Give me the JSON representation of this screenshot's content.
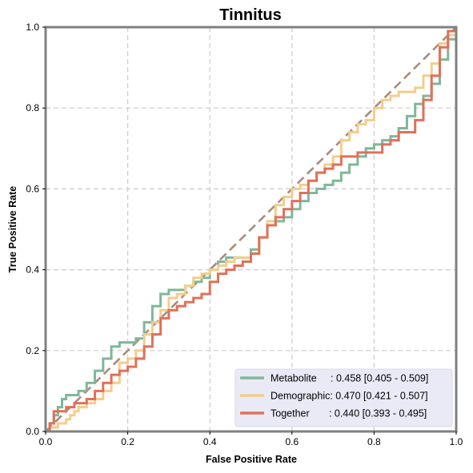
{
  "chart_data": {
    "type": "line",
    "title": "Tinnitus",
    "xlabel": "False Positive Rate",
    "ylabel": "True Positive Rate",
    "xlim": [
      0,
      1
    ],
    "ylim": [
      0,
      1
    ],
    "x_ticks": [
      "0.0",
      "0.2",
      "0.4",
      "0.6",
      "0.8",
      "1.0"
    ],
    "y_ticks": [
      "0.0",
      "0.2",
      "0.4",
      "0.6",
      "0.8",
      "1.0"
    ],
    "grid": true,
    "legend_position": "bottom-right",
    "diagonal": {
      "from": [
        0,
        0
      ],
      "to": [
        1,
        1
      ],
      "color": "#a98b7e",
      "style": "dashed"
    },
    "series": [
      {
        "name": "Metabolite",
        "label": "Metabolite     : 0.458 [0.405 - 0.509]",
        "color": "#7fb79a",
        "x": [
          0,
          0.01,
          0.02,
          0.03,
          0.04,
          0.05,
          0.06,
          0.07,
          0.08,
          0.1,
          0.12,
          0.14,
          0.16,
          0.18,
          0.2,
          0.22,
          0.24,
          0.26,
          0.28,
          0.3,
          0.32,
          0.34,
          0.36,
          0.38,
          0.4,
          0.42,
          0.44,
          0.46,
          0.48,
          0.5,
          0.52,
          0.54,
          0.56,
          0.58,
          0.6,
          0.62,
          0.64,
          0.66,
          0.68,
          0.7,
          0.72,
          0.74,
          0.76,
          0.78,
          0.8,
          0.82,
          0.84,
          0.86,
          0.88,
          0.9,
          0.92,
          0.94,
          0.96,
          0.98,
          1.0
        ],
        "y": [
          0,
          0.02,
          0.04,
          0.06,
          0.08,
          0.09,
          0.09,
          0.09,
          0.1,
          0.12,
          0.15,
          0.18,
          0.21,
          0.22,
          0.22,
          0.23,
          0.27,
          0.31,
          0.34,
          0.35,
          0.35,
          0.36,
          0.37,
          0.38,
          0.4,
          0.42,
          0.43,
          0.43,
          0.43,
          0.45,
          0.48,
          0.51,
          0.52,
          0.53,
          0.55,
          0.57,
          0.59,
          0.6,
          0.61,
          0.62,
          0.64,
          0.66,
          0.68,
          0.7,
          0.71,
          0.72,
          0.73,
          0.75,
          0.78,
          0.81,
          0.83,
          0.86,
          0.92,
          0.97,
          1.0
        ]
      },
      {
        "name": "Demographic",
        "label": "Demographic: 0.470 [0.421 - 0.507]",
        "color": "#f3cd8d",
        "x": [
          0,
          0.01,
          0.02,
          0.03,
          0.04,
          0.05,
          0.06,
          0.07,
          0.08,
          0.1,
          0.12,
          0.14,
          0.16,
          0.18,
          0.2,
          0.22,
          0.24,
          0.26,
          0.28,
          0.3,
          0.32,
          0.34,
          0.36,
          0.38,
          0.4,
          0.42,
          0.44,
          0.46,
          0.48,
          0.5,
          0.52,
          0.54,
          0.56,
          0.58,
          0.6,
          0.62,
          0.64,
          0.66,
          0.68,
          0.7,
          0.72,
          0.74,
          0.76,
          0.78,
          0.8,
          0.82,
          0.84,
          0.86,
          0.88,
          0.9,
          0.92,
          0.94,
          0.96,
          0.98,
          1.0
        ],
        "y": [
          0,
          0.01,
          0.01,
          0.02,
          0.02,
          0.03,
          0.04,
          0.05,
          0.06,
          0.07,
          0.08,
          0.1,
          0.12,
          0.17,
          0.18,
          0.2,
          0.24,
          0.27,
          0.3,
          0.33,
          0.34,
          0.36,
          0.38,
          0.39,
          0.4,
          0.41,
          0.42,
          0.43,
          0.43,
          0.44,
          0.48,
          0.52,
          0.56,
          0.58,
          0.6,
          0.61,
          0.62,
          0.64,
          0.66,
          0.68,
          0.72,
          0.74,
          0.76,
          0.77,
          0.8,
          0.82,
          0.83,
          0.84,
          0.84,
          0.85,
          0.88,
          0.91,
          0.96,
          0.98,
          1.0
        ]
      },
      {
        "name": "Together",
        "label": "Together       : 0.440 [0.393 - 0.495]",
        "color": "#e0705a",
        "x": [
          0,
          0.01,
          0.02,
          0.03,
          0.04,
          0.05,
          0.06,
          0.07,
          0.08,
          0.1,
          0.12,
          0.14,
          0.16,
          0.18,
          0.2,
          0.22,
          0.24,
          0.26,
          0.28,
          0.3,
          0.32,
          0.34,
          0.36,
          0.38,
          0.4,
          0.42,
          0.44,
          0.46,
          0.48,
          0.5,
          0.52,
          0.54,
          0.56,
          0.58,
          0.6,
          0.62,
          0.64,
          0.66,
          0.68,
          0.7,
          0.72,
          0.74,
          0.76,
          0.78,
          0.8,
          0.82,
          0.84,
          0.86,
          0.88,
          0.9,
          0.92,
          0.94,
          0.96,
          0.98,
          1.0
        ],
        "y": [
          0,
          0.02,
          0.05,
          0.05,
          0.05,
          0.06,
          0.06,
          0.07,
          0.07,
          0.08,
          0.1,
          0.12,
          0.14,
          0.15,
          0.16,
          0.18,
          0.21,
          0.24,
          0.28,
          0.3,
          0.31,
          0.32,
          0.33,
          0.34,
          0.37,
          0.39,
          0.4,
          0.41,
          0.42,
          0.44,
          0.48,
          0.51,
          0.53,
          0.55,
          0.57,
          0.59,
          0.62,
          0.64,
          0.65,
          0.66,
          0.68,
          0.68,
          0.69,
          0.69,
          0.69,
          0.71,
          0.72,
          0.74,
          0.74,
          0.77,
          0.82,
          0.88,
          0.95,
          0.99,
          1.0
        ]
      }
    ]
  },
  "legend": {
    "background": "#e9e9f6"
  }
}
